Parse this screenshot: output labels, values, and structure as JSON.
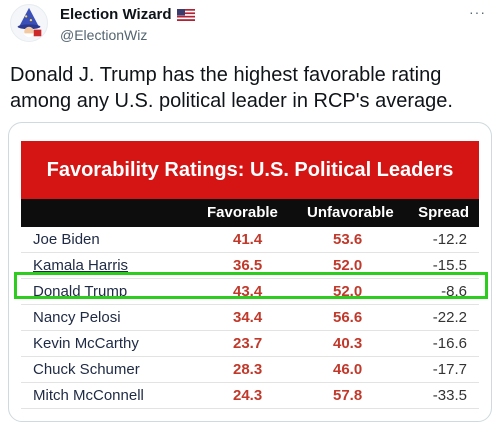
{
  "header": {
    "display_name": "Election Wizard",
    "handle": "@ElectionWiz",
    "more": "···"
  },
  "icons": {
    "avatar": "wizard-avatar-icon",
    "flag": "us-flag-icon",
    "more": "more-options-icon"
  },
  "tweet": {
    "text": "Donald J. Trump has the highest favorable rating among any U.S. political leader in RCP's average."
  },
  "table": {
    "title": "Favorability Ratings: U.S. Political Leaders",
    "columns": [
      "Favorable",
      "Unfavorable",
      "Spread"
    ],
    "rows": [
      {
        "name": "Joe Biden",
        "favorable": "41.4",
        "unfavorable": "53.6",
        "spread": "-12.2"
      },
      {
        "name": "Kamala Harris",
        "favorable": "36.5",
        "unfavorable": "52.0",
        "spread": "-15.5"
      },
      {
        "name": "Donald Trump",
        "favorable": "43.4",
        "unfavorable": "52.0",
        "spread": "-8.6"
      },
      {
        "name": "Nancy Pelosi",
        "favorable": "34.4",
        "unfavorable": "56.6",
        "spread": "-22.2"
      },
      {
        "name": "Kevin McCarthy",
        "favorable": "23.7",
        "unfavorable": "40.3",
        "spread": "-16.6"
      },
      {
        "name": "Chuck Schumer",
        "favorable": "28.3",
        "unfavorable": "46.0",
        "spread": "-17.7"
      },
      {
        "name": "Mitch McConnell",
        "favorable": "24.3",
        "unfavorable": "57.8",
        "spread": "-33.5"
      }
    ],
    "highlighted_row": "Donald Trump"
  },
  "colors": {
    "banner_red": "#d51414",
    "header_black": "#0d0d0d",
    "value_red": "#c0392b",
    "highlight_green": "#2ecc1f"
  }
}
